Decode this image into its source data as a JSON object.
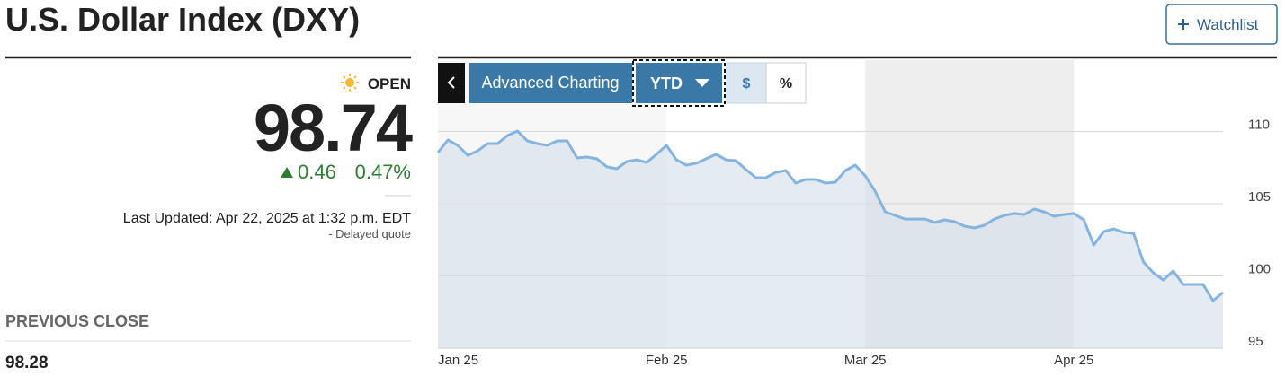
{
  "header": {
    "title": "U.S. Dollar Index (DXY)",
    "watchlist": "Watchlist"
  },
  "quote": {
    "status": "OPEN",
    "price": 98.74,
    "change": 0.46,
    "change_percent": "0.47%",
    "last_updated": "Last Updated: Apr 22, 2025 at 1:32 p.m. EDT",
    "delay": "- Delayed quote",
    "previous_close_label": "PREVIOUS CLOSE",
    "previous_close": 98.28
  },
  "controls": {
    "advanced": "Advanced Charting",
    "range": "YTD",
    "dollar": "$",
    "percent": "%"
  },
  "chart_data": {
    "type": "area",
    "categories": [
      "Jan 25",
      null,
      null,
      null,
      null,
      null,
      null,
      null,
      null,
      null,
      null,
      null,
      null,
      null,
      null,
      null,
      null,
      null,
      null,
      null,
      null,
      null,
      null,
      "Feb 25",
      null,
      null,
      null,
      null,
      null,
      null,
      null,
      null,
      null,
      null,
      null,
      null,
      null,
      null,
      null,
      null,
      null,
      null,
      null,
      "Mar 25",
      null,
      null,
      null,
      null,
      null,
      null,
      null,
      null,
      null,
      null,
      null,
      null,
      null,
      null,
      null,
      null,
      null,
      null,
      null,
      null,
      "Apr 25",
      null,
      null,
      null,
      null,
      null,
      null,
      null,
      null,
      null,
      null,
      null,
      null,
      null,
      null,
      null
    ],
    "values": [
      108.54,
      109.41,
      109.04,
      108.35,
      108.66,
      109.16,
      109.16,
      109.72,
      110.03,
      109.35,
      109.16,
      109.04,
      109.35,
      109.35,
      108.17,
      108.23,
      108.11,
      107.55,
      107.42,
      107.92,
      108.04,
      107.86,
      108.42,
      109.04,
      108.04,
      107.67,
      107.8,
      108.11,
      108.42,
      108.04,
      107.98,
      107.36,
      106.8,
      106.8,
      107.17,
      107.3,
      106.43,
      106.68,
      106.68,
      106.43,
      106.49,
      107.3,
      107.67,
      106.93,
      105.87,
      104.44,
      104.19,
      103.94,
      103.94,
      103.94,
      103.7,
      103.88,
      103.76,
      103.45,
      103.32,
      103.51,
      103.94,
      104.19,
      104.32,
      104.25,
      104.63,
      104.44,
      104.13,
      104.25,
      104.32,
      103.88,
      102.14,
      103.07,
      103.26,
      103.01,
      102.95,
      100.96,
      100.22,
      99.72,
      100.34,
      99.41,
      99.41,
      99.41,
      98.29,
      98.85
    ],
    "color": "#85b5de",
    "fill_color": "#d3deea",
    "ylim": [
      95,
      115
    ],
    "yticks": [
      95,
      100,
      105,
      110
    ],
    "grid": true
  }
}
